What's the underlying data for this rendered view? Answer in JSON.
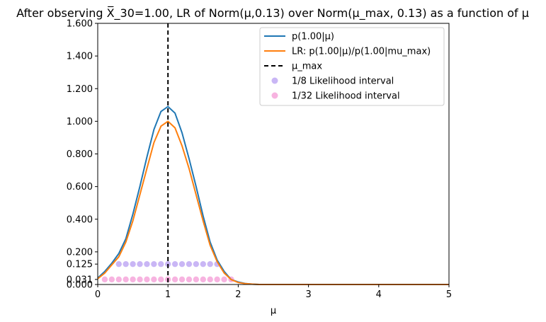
{
  "chart_data": {
    "type": "line",
    "title": "After observing X̅_30=1.00, LR of Norm(μ,0.13) over Norm(μ_max, 0.13) as a function of μ",
    "xlabel": "μ",
    "ylabel": "",
    "xlim": [
      0,
      5
    ],
    "ylim": [
      0,
      1.6
    ],
    "x_ticks": [
      0,
      1,
      2,
      3,
      4,
      5
    ],
    "x_tick_labels": [
      "0",
      "1",
      "2",
      "3",
      "4",
      "5"
    ],
    "y_ticks": [
      0.0,
      0.031,
      0.125,
      0.2,
      0.4,
      0.6,
      0.8,
      1.0,
      1.2,
      1.4,
      1.6
    ],
    "y_tick_labels": [
      "0.000",
      "0.031",
      "0.125",
      "0.200",
      "0.400",
      "0.600",
      "0.800",
      "1.000",
      "1.200",
      "1.400",
      "1.600"
    ],
    "grid": false,
    "legend_position": "top-right",
    "series": [
      {
        "name": "p(1.00|μ)",
        "kind": "line",
        "color": "#1f77b4",
        "x": [
          0,
          0.1,
          0.2,
          0.3,
          0.4,
          0.5,
          0.6,
          0.7,
          0.8,
          0.9,
          1.0,
          1.1,
          1.2,
          1.3,
          1.4,
          1.5,
          1.6,
          1.7,
          1.8,
          1.9,
          2.0,
          2.1,
          2.2,
          2.3,
          2.4,
          2.5,
          3.0,
          3.5,
          4.0,
          4.5,
          5.0
        ],
        "y": [
          0.04,
          0.08,
          0.13,
          0.19,
          0.28,
          0.43,
          0.6,
          0.78,
          0.95,
          1.06,
          1.09,
          1.05,
          0.93,
          0.77,
          0.6,
          0.42,
          0.26,
          0.15,
          0.08,
          0.03,
          0.015,
          0.006,
          0.002,
          0.0,
          0.0,
          0.0,
          0.0,
          0.0,
          0.0,
          0.0,
          0.0
        ]
      },
      {
        "name": "LR: p(1.00|μ)/p(1.00|mu_max)",
        "kind": "line",
        "color": "#ff7f0e",
        "x": [
          0,
          0.1,
          0.2,
          0.3,
          0.4,
          0.5,
          0.6,
          0.7,
          0.8,
          0.9,
          1.0,
          1.1,
          1.2,
          1.3,
          1.4,
          1.5,
          1.6,
          1.7,
          1.8,
          1.9,
          2.0,
          2.1,
          2.2,
          2.3,
          2.4,
          2.5,
          3.0,
          3.5,
          4.0,
          4.5,
          5.0
        ],
        "y": [
          0.035,
          0.07,
          0.12,
          0.17,
          0.26,
          0.39,
          0.55,
          0.71,
          0.87,
          0.97,
          1.0,
          0.96,
          0.85,
          0.71,
          0.55,
          0.39,
          0.24,
          0.14,
          0.07,
          0.03,
          0.012,
          0.005,
          0.002,
          0.0,
          0.0,
          0.0,
          0.0,
          0.0,
          0.0,
          0.0,
          0.0
        ]
      },
      {
        "name": "μ_max",
        "kind": "vline",
        "color": "#000000",
        "x": 1.0
      },
      {
        "name": "1/8 Likelihood interval",
        "kind": "scatter",
        "color": "#c9b6f5",
        "x": [
          0.3,
          0.4,
          0.5,
          0.6,
          0.7,
          0.8,
          0.9,
          1.0,
          1.1,
          1.2,
          1.3,
          1.4,
          1.5,
          1.6,
          1.7
        ],
        "y": 0.125
      },
      {
        "name": "1/32 Likelihood interval",
        "kind": "scatter",
        "color": "#f7b3e0",
        "x": [
          0.1,
          0.2,
          0.3,
          0.4,
          0.5,
          0.6,
          0.7,
          0.8,
          0.9,
          1.0,
          1.1,
          1.2,
          1.3,
          1.4,
          1.5,
          1.6,
          1.7,
          1.8,
          1.9
        ],
        "y": 0.031
      }
    ]
  }
}
